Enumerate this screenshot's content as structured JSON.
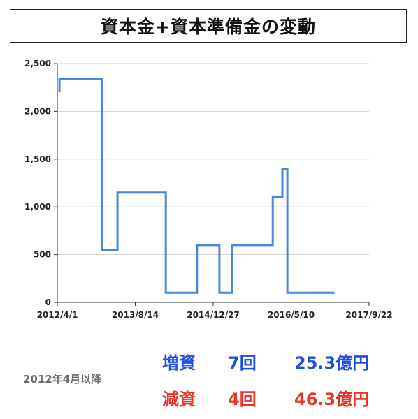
{
  "title": "資本金+資本準備金の変動",
  "note": "2012年4月以降",
  "summary": {
    "increase": {
      "label": "増資",
      "count": "7回",
      "amount": "25.3億円",
      "color": "#1f4fe0"
    },
    "decrease": {
      "label": "減資",
      "count": "4回",
      "amount": "46.3億円",
      "color": "#ea3323"
    }
  },
  "chart_data": {
    "type": "line",
    "step": true,
    "x_axis": {
      "type": "date",
      "range": [
        "2012-04-01",
        "2017-09-22"
      ],
      "ticks": [
        {
          "date": "2012-04-01",
          "label": "2012/4/1"
        },
        {
          "date": "2013-08-14",
          "label": "2013/8/14"
        },
        {
          "date": "2014-12-27",
          "label": "2014/12/27"
        },
        {
          "date": "2016-05-10",
          "label": "2016/5/10"
        },
        {
          "date": "2017-09-22",
          "label": "2017/9/22"
        }
      ]
    },
    "y_axis": {
      "range": [
        0,
        2500
      ],
      "ticks": [
        {
          "value": 0,
          "label": "0"
        },
        {
          "value": 500,
          "label": "500"
        },
        {
          "value": 1000,
          "label": "1,000"
        },
        {
          "value": 1500,
          "label": "1,500"
        },
        {
          "value": 2000,
          "label": "2,000"
        },
        {
          "value": 2500,
          "label": "2,500"
        }
      ]
    },
    "grid": {
      "horizontal": true,
      "vertical": false
    },
    "series": [
      {
        "color": "#4a86e0",
        "points": [
          {
            "x": "2012-04-15",
            "y": 2200
          },
          {
            "x": "2012-04-15",
            "y": 2340
          },
          {
            "x": "2013-01-12",
            "y": 2340
          },
          {
            "x": "2013-01-12",
            "y": 550
          },
          {
            "x": "2013-04-22",
            "y": 550
          },
          {
            "x": "2013-04-22",
            "y": 1150
          },
          {
            "x": "2014-02-26",
            "y": 1150
          },
          {
            "x": "2014-02-26",
            "y": 100
          },
          {
            "x": "2014-09-14",
            "y": 100
          },
          {
            "x": "2014-09-14",
            "y": 600
          },
          {
            "x": "2015-02-05",
            "y": 600
          },
          {
            "x": "2015-02-05",
            "y": 100
          },
          {
            "x": "2015-04-29",
            "y": 100
          },
          {
            "x": "2015-04-29",
            "y": 600
          },
          {
            "x": "2016-01-13",
            "y": 600
          },
          {
            "x": "2016-01-13",
            "y": 1100
          },
          {
            "x": "2016-03-15",
            "y": 1100
          },
          {
            "x": "2016-03-15",
            "y": 1400
          },
          {
            "x": "2016-04-16",
            "y": 1400
          },
          {
            "x": "2016-04-16",
            "y": 100
          },
          {
            "x": "2017-02-13",
            "y": 100
          }
        ]
      }
    ]
  }
}
